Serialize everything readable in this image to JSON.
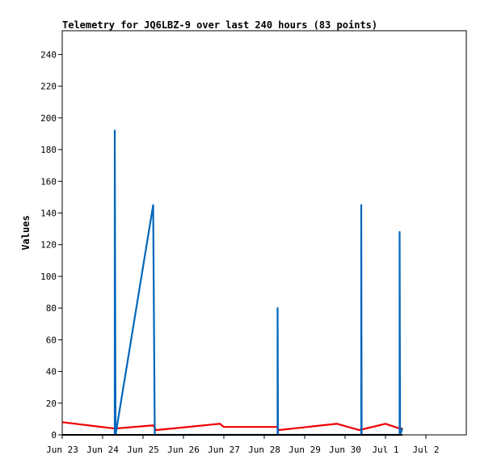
{
  "chart_data": {
    "type": "line",
    "title": "Telemetry for JQ6LBZ-9 over last 240 hours (83 points)",
    "xlabel": "",
    "ylabel": "Values",
    "ylim": [
      0,
      255
    ],
    "yticks": [
      0,
      20,
      40,
      60,
      80,
      100,
      120,
      140,
      160,
      180,
      200,
      220,
      240
    ],
    "xlim_days": [
      0,
      10
    ],
    "xticks": [
      {
        "label": "Jun 23",
        "day": 0
      },
      {
        "label": "Jun 24",
        "day": 1
      },
      {
        "label": "Jun 25",
        "day": 2
      },
      {
        "label": "Jun 26",
        "day": 3
      },
      {
        "label": "Jun 27",
        "day": 4
      },
      {
        "label": "Jun 28",
        "day": 5
      },
      {
        "label": "Jun 29",
        "day": 6
      },
      {
        "label": "Jun 30",
        "day": 7
      },
      {
        "label": "Jul 1",
        "day": 8
      },
      {
        "label": "Jul 2",
        "day": 9
      }
    ],
    "grid": false,
    "series": [
      {
        "color": "#ee0000",
        "points": [
          [
            0.0,
            8
          ],
          [
            1.3,
            4
          ],
          [
            2.25,
            6
          ],
          [
            2.32,
            3
          ],
          [
            3.9,
            7
          ],
          [
            4.0,
            5
          ],
          [
            5.33,
            5
          ],
          [
            5.35,
            3
          ],
          [
            6.8,
            7
          ],
          [
            7.35,
            3
          ],
          [
            8.0,
            7
          ],
          [
            8.35,
            4
          ],
          [
            8.42,
            4
          ]
        ]
      },
      {
        "color": "#0066bb",
        "points": [
          [
            1.3,
            0
          ],
          [
            1.3,
            192
          ],
          [
            1.32,
            0
          ],
          [
            2.25,
            145
          ],
          [
            2.27,
            73
          ],
          [
            2.29,
            0
          ],
          [
            5.33,
            0
          ],
          [
            5.33,
            80
          ],
          [
            5.34,
            0
          ],
          [
            7.4,
            0
          ],
          [
            7.4,
            145
          ],
          [
            7.41,
            0
          ],
          [
            8.35,
            0
          ],
          [
            8.35,
            128
          ],
          [
            8.36,
            0
          ],
          [
            8.42,
            4
          ]
        ]
      },
      {
        "color": "#000000",
        "points": [
          [
            0.0,
            0
          ],
          [
            8.42,
            0
          ]
        ]
      }
    ]
  }
}
